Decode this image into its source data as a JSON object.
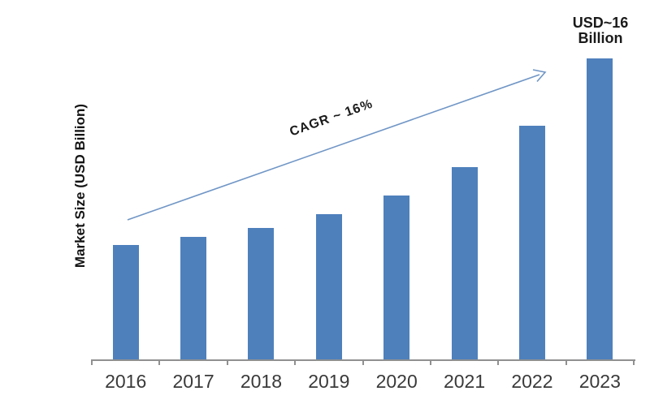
{
  "chart_data": {
    "type": "bar",
    "title": "",
    "categories": [
      "2016",
      "2017",
      "2018",
      "2019",
      "2020",
      "2021",
      "2022",
      "2023"
    ],
    "values": [
      6.1,
      6.5,
      7.0,
      7.7,
      8.7,
      10.2,
      12.4,
      16.0
    ],
    "unit": "USD Billion",
    "xlabel": "",
    "ylabel": "Market Size (USD Billion)",
    "ylim": [
      0,
      16
    ],
    "grid": false,
    "legend": false,
    "annotations": {
      "cagr_label": "CAGR ~ 16%",
      "peak_label_line1": "USD~16",
      "peak_label_line2": "Billion"
    },
    "colors": {
      "bar": "#4e80bc",
      "arrow": "#7096c6",
      "axis": "#909090",
      "category_text": "#3a3a3a",
      "annotation_text": "#1a1a1a"
    }
  }
}
